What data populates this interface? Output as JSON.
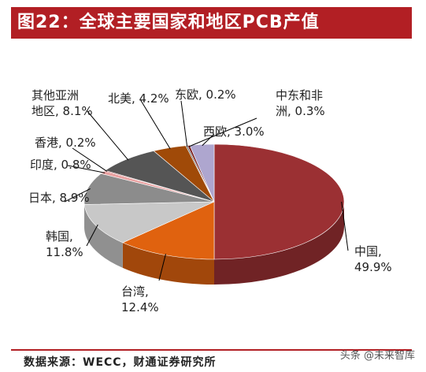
{
  "title": "图22：全球主要国家和地区PCB产值",
  "source": "数据来源：WECC，财通证券研究所",
  "watermark": "头条 @未来智库",
  "chart_data": {
    "type": "pie",
    "title": "图22：全球主要国家和地区PCB产值",
    "slices": [
      {
        "name": "中国",
        "value": 49.9,
        "label_lines": [
          "中国,",
          "49.9%"
        ],
        "color": "#9b3033"
      },
      {
        "name": "台湾",
        "value": 12.4,
        "label_lines": [
          "台湾,",
          "12.4%"
        ],
        "color": "#e0620f"
      },
      {
        "name": "韩国",
        "value": 11.8,
        "label_lines": [
          "韩国,",
          "11.8%"
        ],
        "color": "#c8c8c8"
      },
      {
        "name": "日本",
        "value": 8.9,
        "label_lines": [
          "日本, 8.9%"
        ],
        "color": "#8c8c8c"
      },
      {
        "name": "印度",
        "value": 0.8,
        "label_lines": [
          "印度, 0.8%"
        ],
        "color": "#e9a0a0"
      },
      {
        "name": "香港",
        "value": 0.2,
        "label_lines": [
          "香港, 0.2%"
        ],
        "color": "#b02c2c"
      },
      {
        "name": "其他亚洲地区",
        "value": 8.1,
        "label_lines": [
          "其他亚洲",
          "地区, 8.1%"
        ],
        "color": "#555555"
      },
      {
        "name": "北美",
        "value": 4.2,
        "label_lines": [
          "北美, 4.2%"
        ],
        "color": "#a04a08"
      },
      {
        "name": "东欧",
        "value": 0.2,
        "label_lines": [
          "东欧, 0.2%"
        ],
        "color": "#6b6b6b"
      },
      {
        "name": "中东和非洲",
        "value": 0.3,
        "label_lines": [
          "中东和非",
          "洲, 0.3%"
        ],
        "color": "#7a2020"
      },
      {
        "name": "西欧",
        "value": 3.0,
        "label_lines": [
          "西欧, 3.0%"
        ],
        "color": "#aea6cf"
      }
    ]
  }
}
